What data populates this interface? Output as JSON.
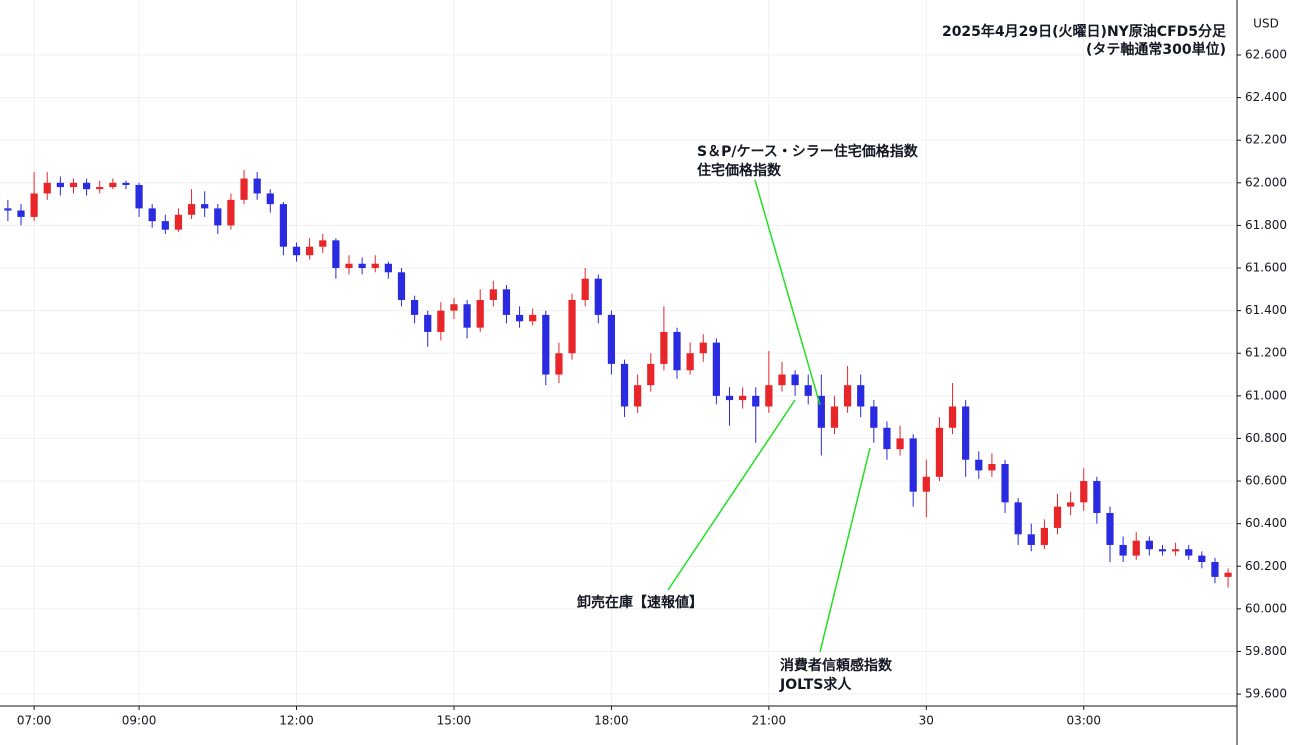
{
  "chart_data": {
    "type": "candlestick",
    "title": [
      "2025年4月29日(火曜日)NY原油CFD5分足",
      "(タテ軸通常300単位)"
    ],
    "ylabel": "USD",
    "up_color": "#e8262a",
    "down_color": "#2a2ae0",
    "grid": true,
    "xlim": [
      6.35,
      29.92
    ],
    "xticks": [
      {
        "value": 7,
        "label": "07:00"
      },
      {
        "value": 9,
        "label": "09:00"
      },
      {
        "value": 12,
        "label": "12:00"
      },
      {
        "value": 15,
        "label": "15:00"
      },
      {
        "value": 18,
        "label": "18:00"
      },
      {
        "value": 21,
        "label": "21:00"
      },
      {
        "value": 24,
        "label": "30"
      },
      {
        "value": 27,
        "label": "03:00"
      }
    ],
    "ylim": [
      59.544,
      62.83
    ],
    "yticks": [
      {
        "value": 59.6,
        "label": "59.600"
      },
      {
        "value": 59.8,
        "label": "59.800"
      },
      {
        "value": 60,
        "label": "60.000"
      },
      {
        "value": 60.2,
        "label": "60.200"
      },
      {
        "value": 60.4,
        "label": "60.400"
      },
      {
        "value": 60.6,
        "label": "60.600"
      },
      {
        "value": 60.8,
        "label": "60.800"
      },
      {
        "value": 61,
        "label": "61.000"
      },
      {
        "value": 61.2,
        "label": "61.200"
      },
      {
        "value": 61.4,
        "label": "61.400"
      },
      {
        "value": 61.6,
        "label": "61.600"
      },
      {
        "value": 61.8,
        "label": "61.800"
      },
      {
        "value": 62,
        "label": "62.000"
      },
      {
        "value": 62.2,
        "label": "62.200"
      },
      {
        "value": 62.4,
        "label": "62.400"
      },
      {
        "value": 62.6,
        "label": "62.600"
      }
    ],
    "x": [
      6.5,
      6.75,
      7,
      7.25,
      7.5,
      7.75,
      8,
      8.25,
      8.5,
      8.75,
      9,
      9.25,
      9.5,
      9.75,
      10,
      10.25,
      10.5,
      10.75,
      11,
      11.25,
      11.5,
      11.75,
      12,
      12.25,
      12.5,
      12.75,
      13,
      13.25,
      13.5,
      13.75,
      14,
      14.25,
      14.5,
      14.75,
      15,
      15.25,
      15.5,
      15.75,
      16,
      16.25,
      16.5,
      16.75,
      17,
      17.25,
      17.5,
      17.75,
      18,
      18.25,
      18.5,
      18.75,
      19,
      19.25,
      19.5,
      19.75,
      20,
      20.25,
      20.5,
      20.75,
      21,
      21.25,
      21.5,
      21.75,
      22,
      22.25,
      22.5,
      22.75,
      23,
      23.25,
      23.5,
      23.75,
      24,
      24.25,
      24.5,
      24.75,
      25,
      25.25,
      25.5,
      25.75,
      26,
      26.25,
      26.5,
      26.75,
      27,
      27.25,
      27.5,
      27.75,
      28,
      28.25,
      28.5,
      28.75,
      29,
      29.25,
      29.5,
      29.75
    ],
    "open": [
      61.88,
      61.87,
      61.84,
      61.95,
      62.0,
      61.98,
      62.0,
      61.97,
      61.98,
      62.0,
      61.99,
      61.88,
      61.82,
      61.78,
      61.85,
      61.9,
      61.88,
      61.8,
      61.92,
      62.02,
      61.95,
      61.9,
      61.7,
      61.66,
      61.7,
      61.73,
      61.6,
      61.62,
      61.6,
      61.62,
      61.58,
      61.45,
      61.38,
      61.3,
      61.4,
      61.43,
      61.32,
      61.45,
      61.5,
      61.38,
      61.35,
      61.38,
      61.1,
      61.2,
      61.45,
      61.55,
      61.38,
      61.15,
      60.95,
      61.05,
      61.15,
      61.3,
      61.12,
      61.2,
      61.25,
      61.0,
      60.98,
      61.0,
      60.95,
      61.05,
      61.1,
      61.05,
      61.0,
      60.85,
      60.95,
      61.05,
      60.95,
      60.85,
      60.75,
      60.8,
      60.55,
      60.62,
      60.85,
      60.95,
      60.7,
      60.65,
      60.68,
      60.5,
      60.35,
      60.3,
      60.38,
      60.48,
      60.5,
      60.6,
      60.45,
      60.3,
      60.25,
      60.32,
      60.28,
      60.27,
      60.28,
      60.25,
      60.22,
      60.15
    ],
    "high": [
      61.92,
      61.9,
      62.05,
      62.05,
      62.03,
      62.02,
      62.02,
      62.01,
      62.02,
      62.01,
      62.0,
      61.9,
      61.85,
      61.88,
      61.97,
      61.96,
      61.9,
      61.95,
      62.06,
      62.05,
      61.97,
      61.91,
      61.72,
      61.74,
      61.76,
      61.74,
      61.66,
      61.65,
      61.66,
      61.63,
      61.6,
      61.47,
      61.4,
      61.44,
      61.46,
      61.45,
      61.5,
      61.54,
      61.52,
      61.42,
      61.41,
      61.4,
      61.25,
      61.48,
      61.6,
      61.57,
      61.4,
      61.17,
      61.1,
      61.2,
      61.42,
      61.32,
      61.25,
      61.29,
      61.27,
      61.04,
      61.04,
      61.04,
      61.21,
      61.16,
      61.12,
      61.1,
      61.1,
      61.0,
      61.14,
      61.1,
      60.98,
      60.88,
      60.86,
      60.82,
      60.7,
      60.9,
      61.06,
      60.98,
      60.74,
      60.73,
      60.7,
      60.52,
      60.4,
      60.42,
      60.54,
      60.55,
      60.66,
      60.62,
      60.48,
      60.34,
      60.36,
      60.34,
      60.3,
      60.31,
      60.3,
      60.27,
      60.24,
      60.19
    ],
    "low": [
      61.82,
      61.8,
      61.82,
      61.92,
      61.94,
      61.95,
      61.94,
      61.95,
      61.97,
      61.97,
      61.84,
      61.79,
      61.76,
      61.77,
      61.83,
      61.84,
      61.76,
      61.78,
      61.9,
      61.92,
      61.86,
      61.66,
      61.63,
      61.64,
      61.67,
      61.55,
      61.57,
      61.57,
      61.58,
      61.55,
      61.42,
      61.34,
      61.23,
      61.26,
      61.36,
      61.27,
      61.3,
      61.42,
      61.34,
      61.32,
      61.33,
      61.05,
      61.06,
      61.17,
      61.42,
      61.34,
      61.1,
      60.9,
      60.92,
      61.02,
      61.12,
      61.08,
      61.1,
      61.16,
      60.96,
      60.86,
      60.94,
      60.78,
      60.92,
      61.02,
      61.0,
      60.96,
      60.72,
      60.82,
      60.92,
      60.9,
      60.78,
      60.7,
      60.72,
      60.48,
      60.43,
      60.6,
      60.82,
      60.62,
      60.61,
      60.62,
      60.45,
      60.3,
      60.27,
      60.28,
      60.35,
      60.44,
      60.46,
      60.4,
      60.22,
      60.22,
      60.23,
      60.25,
      60.25,
      60.25,
      60.23,
      60.19,
      60.12,
      60.1
    ],
    "close": [
      61.87,
      61.84,
      61.95,
      62.0,
      61.98,
      62.0,
      61.97,
      61.98,
      62.0,
      61.99,
      61.88,
      61.82,
      61.78,
      61.85,
      61.9,
      61.88,
      61.8,
      61.92,
      62.02,
      61.95,
      61.9,
      61.7,
      61.66,
      61.7,
      61.73,
      61.6,
      61.62,
      61.6,
      61.62,
      61.58,
      61.45,
      61.38,
      61.3,
      61.4,
      61.43,
      61.32,
      61.45,
      61.5,
      61.38,
      61.35,
      61.38,
      61.1,
      61.2,
      61.45,
      61.55,
      61.38,
      61.15,
      60.95,
      61.05,
      61.15,
      61.3,
      61.12,
      61.2,
      61.25,
      61.0,
      60.98,
      61.0,
      60.95,
      61.05,
      61.1,
      61.05,
      61.0,
      60.85,
      60.95,
      61.05,
      60.95,
      60.85,
      60.75,
      60.8,
      60.55,
      60.62,
      60.85,
      60.95,
      60.7,
      60.65,
      60.68,
      60.5,
      60.35,
      60.3,
      60.38,
      60.48,
      60.5,
      60.6,
      60.45,
      60.3,
      60.25,
      60.32,
      60.28,
      60.27,
      60.28,
      60.25,
      60.22,
      60.15,
      60.17
    ],
    "annotations": [
      {
        "text": [
          "S＆P/ケース・シラー住宅価格指数",
          "住宅価格指数"
        ]
      },
      {
        "text": [
          "卸売在庫【速報値】"
        ]
      },
      {
        "text": [
          "消費者信頼感指数",
          "JOLTS求人"
        ]
      }
    ]
  }
}
